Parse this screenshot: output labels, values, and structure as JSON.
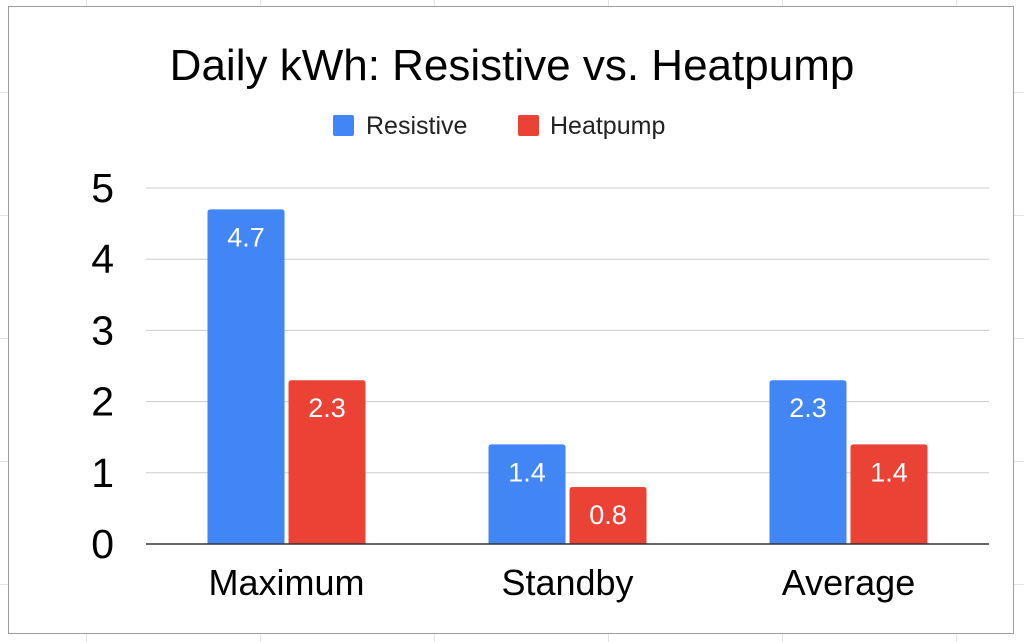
{
  "chart_data": {
    "type": "bar",
    "title": "Daily kWh: Resistive vs. Heatpump",
    "categories": [
      "Maximum",
      "Standby",
      "Average"
    ],
    "series": [
      {
        "name": "Resistive",
        "values": [
          4.7,
          1.4,
          2.3
        ],
        "color": "#4285f4",
        "labels": [
          "4.7",
          "1.4",
          "2.3"
        ]
      },
      {
        "name": "Heatpump",
        "values": [
          2.3,
          0.8,
          1.4
        ],
        "color": "#ea4335",
        "labels": [
          "2.3",
          "0.8",
          "1.4"
        ]
      }
    ],
    "ylim": [
      0,
      5
    ],
    "yticks": [
      "0",
      "1",
      "2",
      "3",
      "4",
      "5"
    ],
    "xlabel": "",
    "ylabel": "",
    "grid": true,
    "legend_position": "top-center",
    "data_labels": "inside-end"
  }
}
